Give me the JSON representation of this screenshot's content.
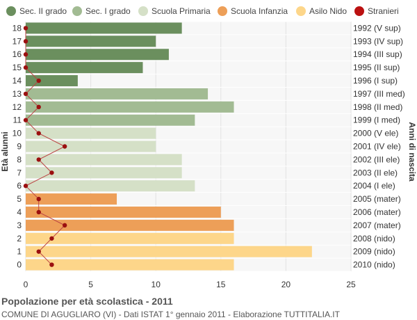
{
  "chart_data": {
    "type": "bar",
    "orientation": "horizontal",
    "title": "Popolazione per età scolastica - 2011",
    "subtitle": "COMUNE DI AGUGLIARO (VI) - Dati ISTAT 1° gennaio 2011 - Elaborazione TUTTITALIA.IT",
    "ylabel_left": "Età alunni",
    "ylabel_right": "Anni di nascita",
    "xlim": [
      0,
      25
    ],
    "xticks": [
      0,
      5,
      10,
      15,
      20,
      25
    ],
    "grid": true,
    "legend_position": "top",
    "legend": [
      {
        "name": "Sec. II grado",
        "color": "#6b8f5e"
      },
      {
        "name": "Sec. I grado",
        "color": "#a2bb93"
      },
      {
        "name": "Scuola Primaria",
        "color": "#d5e0c7"
      },
      {
        "name": "Scuola Infanzia",
        "color": "#ed9f58"
      },
      {
        "name": "Asilo Nido",
        "color": "#fdd68a"
      },
      {
        "name": "Stranieri",
        "color": "#bb1111"
      }
    ],
    "ages": [
      18,
      17,
      16,
      15,
      14,
      13,
      12,
      11,
      10,
      9,
      8,
      7,
      6,
      5,
      4,
      3,
      2,
      1,
      0
    ],
    "birth_years": [
      "1992 (V sup)",
      "1993 (IV sup)",
      "1994 (III sup)",
      "1995 (II sup)",
      "1996 (I sup)",
      "1997 (III med)",
      "1998 (II med)",
      "1999 (I med)",
      "2000 (V ele)",
      "2001 (IV ele)",
      "2002 (III ele)",
      "2003 (II ele)",
      "2004 (I ele)",
      "2005 (mater)",
      "2006 (mater)",
      "2007 (mater)",
      "2008 (nido)",
      "2009 (nido)",
      "2010 (nido)"
    ],
    "values": [
      12,
      10,
      11,
      9,
      4,
      14,
      16,
      13,
      10,
      10,
      12,
      12,
      13,
      7,
      15,
      16,
      16,
      22,
      16
    ],
    "groups": [
      0,
      0,
      0,
      0,
      0,
      1,
      1,
      1,
      2,
      2,
      2,
      2,
      2,
      3,
      3,
      3,
      4,
      4,
      4
    ],
    "stranieri": [
      0,
      0,
      0,
      0,
      1,
      0,
      1,
      0,
      1,
      3,
      1,
      2,
      0,
      1,
      1,
      3,
      2,
      1,
      2
    ]
  }
}
